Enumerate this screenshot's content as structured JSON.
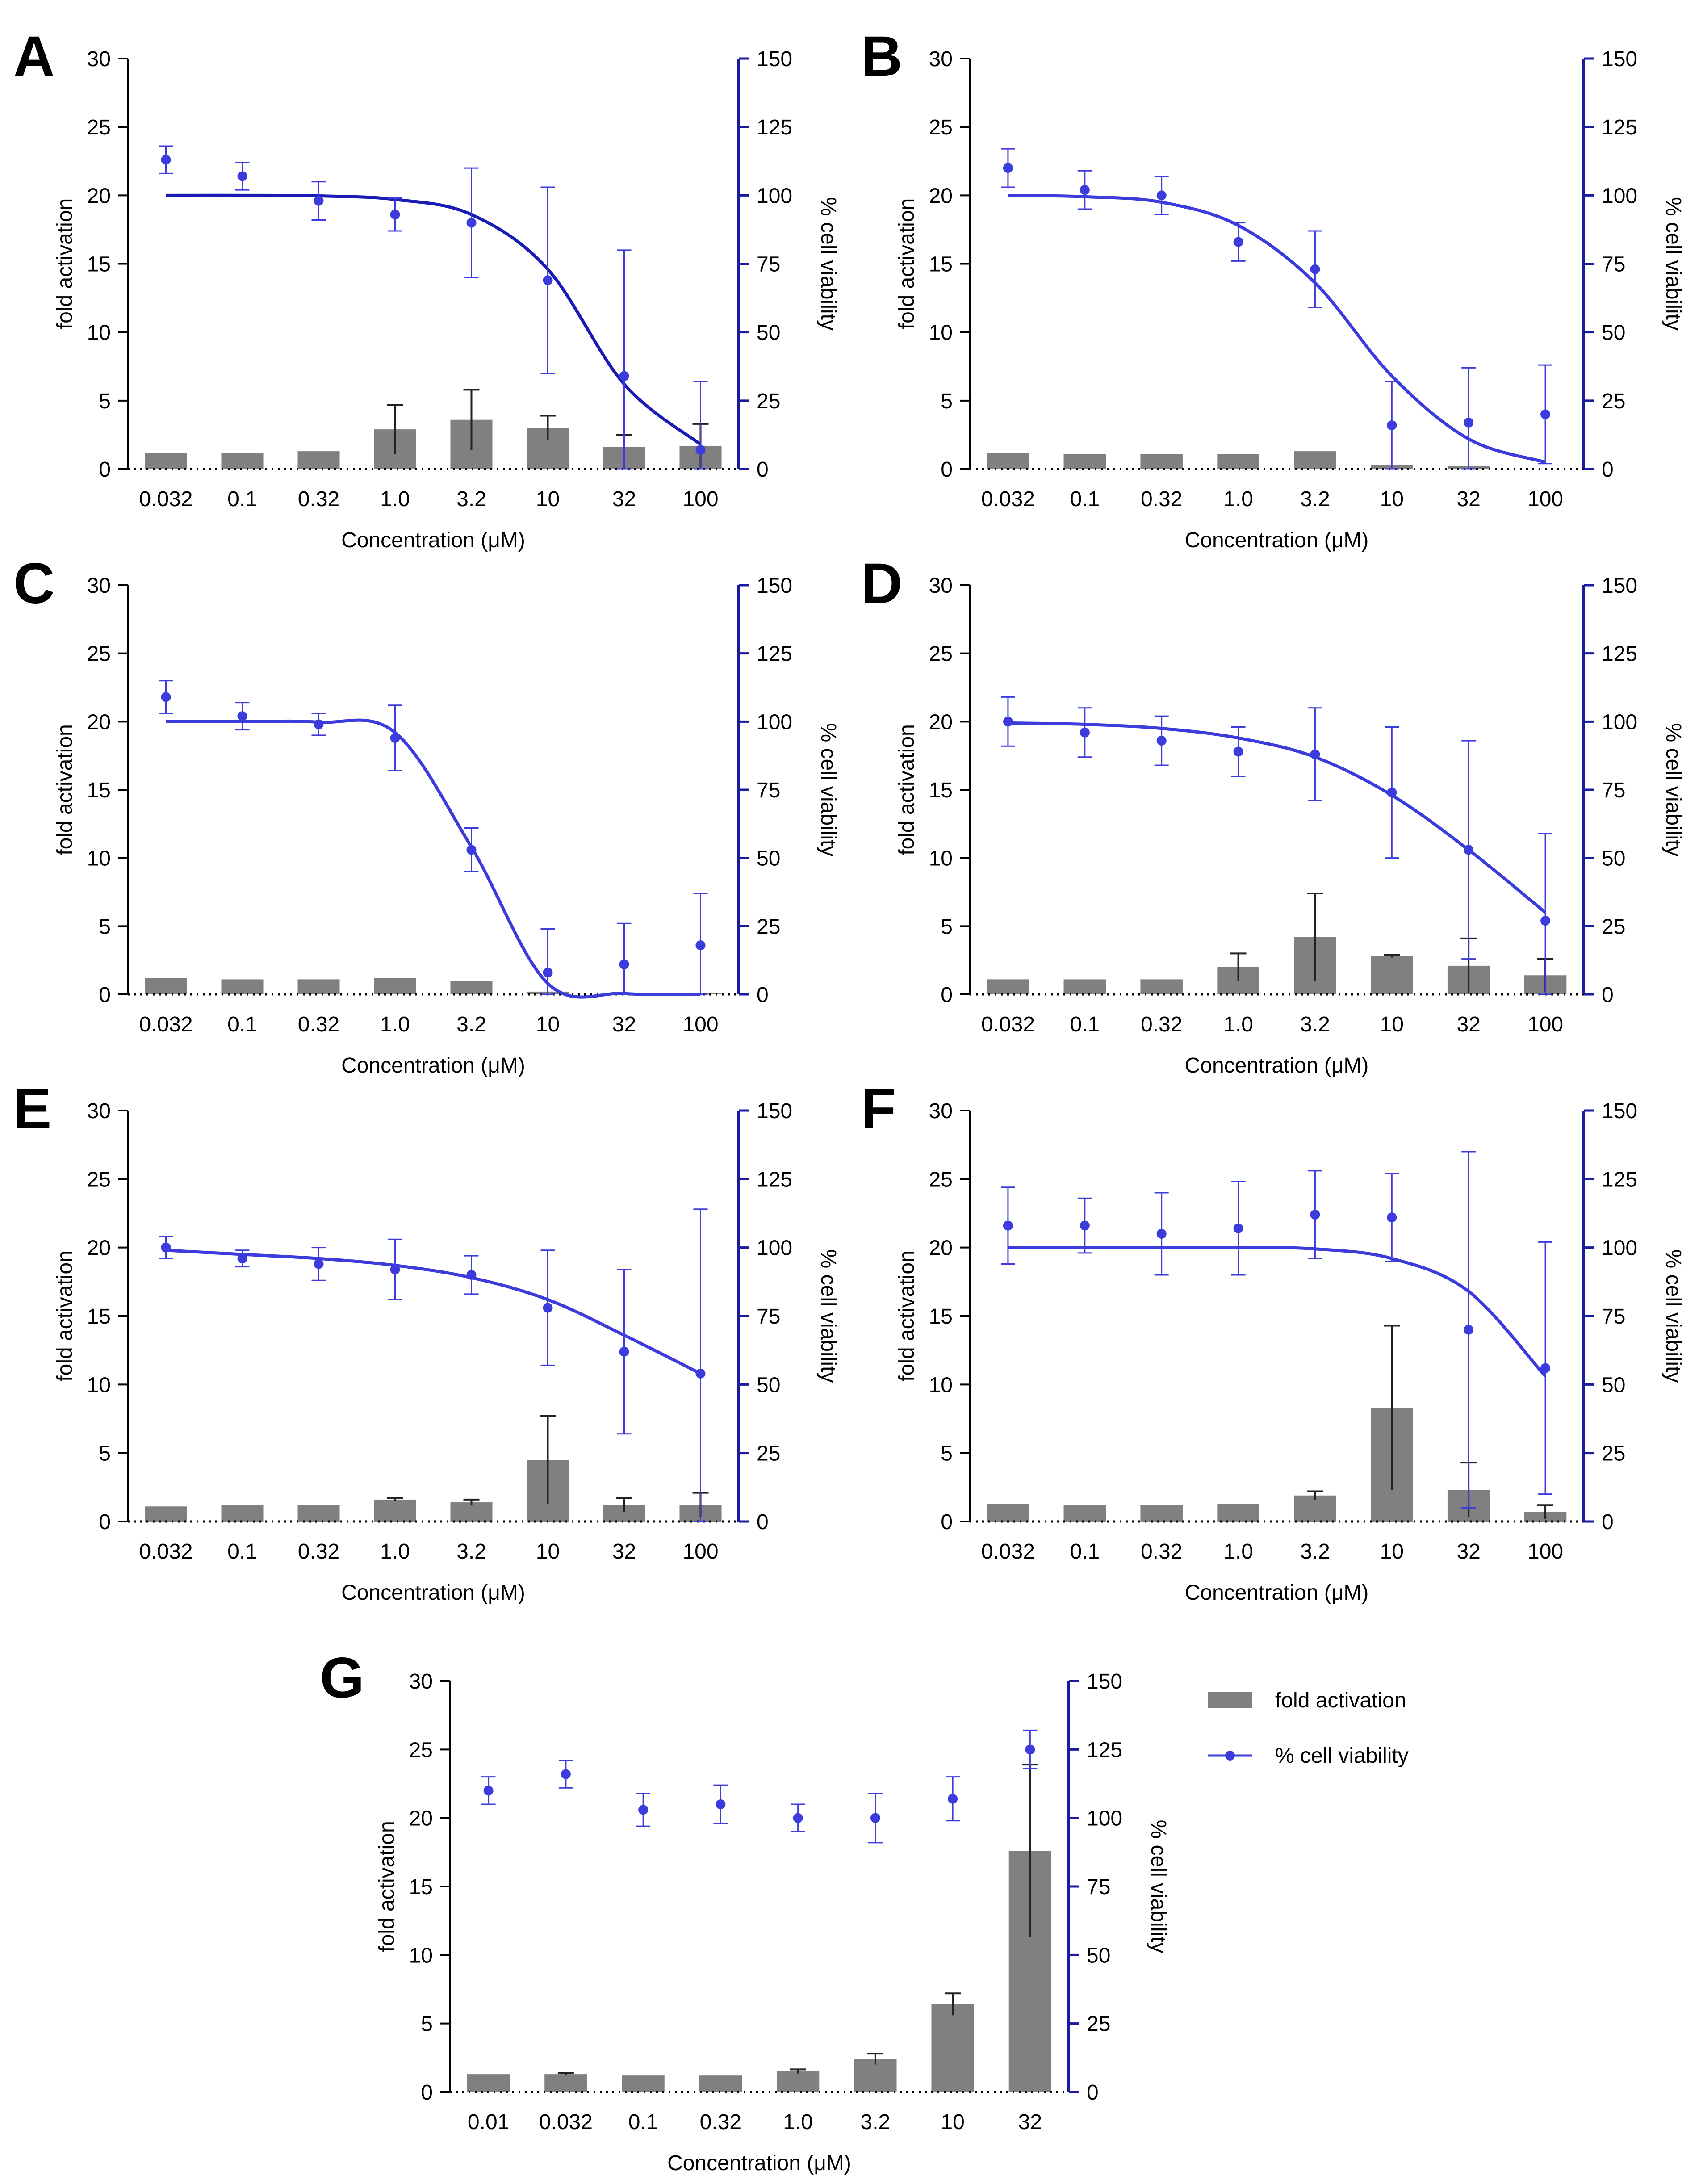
{
  "chart_data": [
    {
      "panel": "A",
      "type": "bar+line",
      "xlabel": "Concentration (μM)",
      "ylabel_left": "fold activation",
      "ylabel_right": "% cell viability",
      "ylim_left": [
        0,
        30
      ],
      "ylim_right": [
        0,
        150
      ],
      "yticks_left": [
        "0",
        "5",
        "10",
        "15",
        "20",
        "25",
        "30"
      ],
      "yticks_right": [
        "0",
        "25",
        "50",
        "75",
        "100",
        "125",
        "150"
      ],
      "categories": [
        "0.032",
        "0.1",
        "0.32",
        "1.0",
        "3.2",
        "10",
        "32",
        "100"
      ],
      "fold_activation": [
        1.2,
        1.2,
        1.3,
        2.9,
        3.6,
        3.0,
        1.6,
        1.7
      ],
      "fold_activation_err": [
        0.05,
        0.05,
        0.05,
        1.8,
        2.2,
        0.9,
        0.9,
        1.6
      ],
      "viability": [
        113,
        107,
        98,
        93,
        90,
        69,
        34,
        7
      ],
      "viability_err": [
        5,
        5,
        7,
        6,
        20,
        34,
        46,
        25
      ],
      "fit_curve": [
        100,
        100,
        99.8,
        98.5,
        93,
        73,
        31,
        9
      ]
    },
    {
      "panel": "B",
      "type": "bar+line",
      "xlabel": "Concentration (μM)",
      "ylabel_left": "fold activation",
      "ylabel_right": "% cell viability",
      "ylim_left": [
        0,
        30
      ],
      "ylim_right": [
        0,
        150
      ],
      "yticks_left": [
        "0",
        "5",
        "10",
        "15",
        "20",
        "25",
        "30"
      ],
      "yticks_right": [
        "0",
        "25",
        "50",
        "75",
        "100",
        "125",
        "150"
      ],
      "categories": [
        "0.032",
        "0.1",
        "0.32",
        "1.0",
        "3.2",
        "10",
        "32",
        "100"
      ],
      "fold_activation": [
        1.2,
        1.1,
        1.1,
        1.1,
        1.3,
        0.3,
        0.2,
        0.0
      ],
      "fold_activation_err": [
        0.05,
        0.05,
        0.05,
        0.05,
        0.05,
        0.05,
        0.05,
        0.05
      ],
      "viability": [
        110,
        102,
        100,
        83,
        73,
        16,
        17,
        20
      ],
      "viability_err": [
        7,
        7,
        7,
        7,
        14,
        16,
        20,
        18
      ],
      "fit_curve": [
        100,
        99.5,
        97.5,
        89,
        68,
        34,
        11,
        2.5
      ]
    },
    {
      "panel": "C",
      "type": "bar+line",
      "xlabel": "Concentration (μM)",
      "ylabel_left": "fold activation",
      "ylabel_right": "% cell viability",
      "ylim_left": [
        0,
        30
      ],
      "ylim_right": [
        0,
        150
      ],
      "yticks_left": [
        "0",
        "5",
        "10",
        "15",
        "20",
        "25",
        "30"
      ],
      "yticks_right": [
        "0",
        "25",
        "50",
        "75",
        "100",
        "125",
        "150"
      ],
      "categories": [
        "0.032",
        "0.1",
        "0.32",
        "1.0",
        "3.2",
        "10",
        "32",
        "100"
      ],
      "fold_activation": [
        1.2,
        1.1,
        1.1,
        1.2,
        1.0,
        0.2,
        0.1,
        0.1
      ],
      "fold_activation_err": [
        0.05,
        0.05,
        0.05,
        0.05,
        0.05,
        0.05,
        0.05,
        0.05
      ],
      "viability": [
        109,
        102,
        99,
        94,
        53,
        8,
        11,
        18
      ],
      "viability_err": [
        6,
        5,
        4,
        12,
        8,
        16,
        15,
        19
      ],
      "fit_curve": [
        100,
        100,
        99.8,
        96,
        54,
        4,
        0.3,
        0
      ]
    },
    {
      "panel": "D",
      "type": "bar+line",
      "xlabel": "Concentration (μM)",
      "ylabel_left": "fold activation",
      "ylabel_right": "% cell viability",
      "ylim_left": [
        0,
        30
      ],
      "ylim_right": [
        0,
        150
      ],
      "yticks_left": [
        "0",
        "5",
        "10",
        "15",
        "20",
        "25",
        "30"
      ],
      "yticks_right": [
        "0",
        "25",
        "50",
        "75",
        "100",
        "125",
        "150"
      ],
      "categories": [
        "0.032",
        "0.1",
        "0.32",
        "1.0",
        "3.2",
        "10",
        "32",
        "100"
      ],
      "fold_activation": [
        1.1,
        1.1,
        1.1,
        2.0,
        4.2,
        2.8,
        2.1,
        1.4
      ],
      "fold_activation_err": [
        0.05,
        0.05,
        0.05,
        1.0,
        3.2,
        0.1,
        2.0,
        1.2
      ],
      "viability": [
        100,
        96,
        93,
        89,
        88,
        74,
        53,
        27
      ],
      "viability_err": [
        9,
        9,
        9,
        9,
        17,
        24,
        40,
        32
      ],
      "fit_curve": [
        99.5,
        99,
        97.5,
        94,
        87,
        73,
        53,
        30
      ]
    },
    {
      "panel": "E",
      "type": "bar+line",
      "xlabel": "Concentration (μM)",
      "ylabel_left": "fold activation",
      "ylabel_right": "% cell viability",
      "ylim_left": [
        0,
        30
      ],
      "ylim_right": [
        0,
        150
      ],
      "yticks_left": [
        "0",
        "5",
        "10",
        "15",
        "20",
        "25",
        "30"
      ],
      "yticks_right": [
        "0",
        "25",
        "50",
        "75",
        "100",
        "125",
        "150"
      ],
      "categories": [
        "0.032",
        "0.1",
        "0.32",
        "1.0",
        "3.2",
        "10",
        "32",
        "100"
      ],
      "fold_activation": [
        1.1,
        1.2,
        1.2,
        1.6,
        1.4,
        4.5,
        1.2,
        1.2
      ],
      "fold_activation_err": [
        0.05,
        0.05,
        0.05,
        0.1,
        0.2,
        3.2,
        0.5,
        0.9
      ],
      "viability": [
        100,
        96,
        94,
        92,
        90,
        78,
        62,
        54
      ],
      "viability_err": [
        4,
        3,
        6,
        11,
        7,
        21,
        30,
        60
      ],
      "fit_curve": [
        99,
        97.5,
        96,
        93.5,
        89,
        81,
        68,
        54
      ]
    },
    {
      "panel": "F",
      "type": "bar+line",
      "xlabel": "Concentration (μM)",
      "ylabel_left": "fold activation",
      "ylabel_right": "% cell viability",
      "ylim_left": [
        0,
        30
      ],
      "ylim_right": [
        0,
        150
      ],
      "yticks_left": [
        "0",
        "5",
        "10",
        "15",
        "20",
        "25",
        "30"
      ],
      "yticks_right": [
        "0",
        "25",
        "50",
        "75",
        "100",
        "125",
        "150"
      ],
      "categories": [
        "0.032",
        "0.1",
        "0.32",
        "1.0",
        "3.2",
        "10",
        "32",
        "100"
      ],
      "fold_activation": [
        1.3,
        1.2,
        1.2,
        1.3,
        1.9,
        8.3,
        2.3,
        0.7
      ],
      "fold_activation_err": [
        0.05,
        0.05,
        0.05,
        0.05,
        0.3,
        6.0,
        2.0,
        0.5
      ],
      "viability": [
        108,
        108,
        105,
        107,
        112,
        111,
        70,
        56
      ],
      "viability_err": [
        14,
        10,
        15,
        17,
        16,
        16,
        65,
        46
      ],
      "fit_curve": [
        100,
        100,
        100,
        100,
        99.5,
        96,
        84,
        53
      ]
    },
    {
      "panel": "G",
      "type": "bar+scatter",
      "xlabel": "Concentration (μM)",
      "ylabel_left": "fold activation",
      "ylabel_right": "% cell viability",
      "ylim_left": [
        0,
        30
      ],
      "ylim_right": [
        0,
        150
      ],
      "yticks_left": [
        "0",
        "5",
        "10",
        "15",
        "20",
        "25",
        "30"
      ],
      "yticks_right": [
        "0",
        "25",
        "50",
        "75",
        "100",
        "125",
        "150"
      ],
      "categories": [
        "0.01",
        "0.032",
        "0.1",
        "0.32",
        "1.0",
        "3.2",
        "10",
        "32"
      ],
      "fold_activation": [
        1.3,
        1.3,
        1.2,
        1.2,
        1.5,
        2.4,
        6.4,
        17.6
      ],
      "fold_activation_err": [
        0.05,
        0.1,
        0.05,
        0.05,
        0.15,
        0.4,
        0.8,
        6.3
      ],
      "viability": [
        110,
        116,
        103,
        105,
        100,
        100,
        107,
        125
      ],
      "viability_err": [
        5,
        5,
        6,
        7,
        5,
        9,
        8,
        7
      ],
      "legend": {
        "position": "right",
        "entries": [
          "fold activation",
          "% cell viability"
        ]
      }
    }
  ],
  "colors": {
    "bar": "#808080",
    "viability": "#3c3cdc",
    "right_axis": "#1a1aa0",
    "axis": "#000000"
  }
}
